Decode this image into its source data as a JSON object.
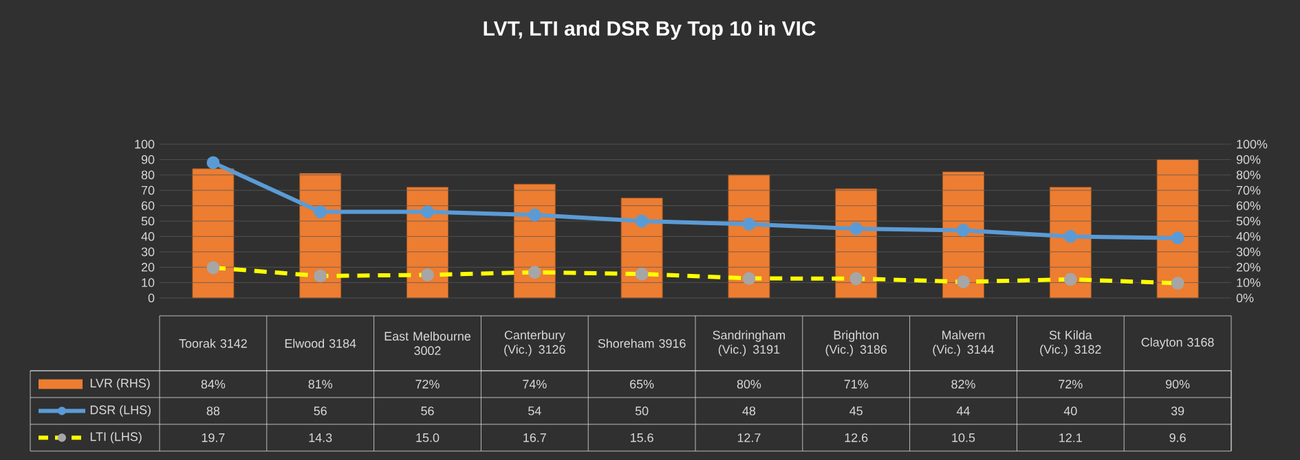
{
  "chart_data": {
    "type": "bar",
    "title": "LVT, LTI and DSR By Top 10 in VIC",
    "categories": [
      "Toorak 3142",
      "Elwood 3184",
      "East Melbourne 3002",
      "Canterbury (Vic.) 3126",
      "Shoreham 3916",
      "Sandringham (Vic.) 3191",
      "Brighton (Vic.) 3186",
      "Malvern (Vic.) 3144",
      "St Kilda (Vic.) 3182",
      "Clayton 3168"
    ],
    "series": [
      {
        "name": "LVR (RHS)",
        "axis": "y2",
        "color": "#ed7d31",
        "values": [
          84,
          81,
          72,
          74,
          65,
          80,
          71,
          82,
          72,
          90
        ],
        "value_labels": [
          "84%",
          "81%",
          "72%",
          "74%",
          "65%",
          "80%",
          "71%",
          "82%",
          "72%",
          "90%"
        ]
      },
      {
        "name": "DSR (LHS)",
        "type": "line",
        "color": "#5b9bd5",
        "marker": "circle",
        "line_style": "solid",
        "values": [
          88,
          56,
          56,
          54,
          50,
          48,
          45,
          44,
          40,
          39
        ],
        "value_labels": [
          "88",
          "56",
          "56",
          "54",
          "50",
          "48",
          "45",
          "44",
          "40",
          "39"
        ]
      },
      {
        "name": "LTI (LHS)",
        "type": "line",
        "color": "#ffff00",
        "marker": "circle",
        "line_style": "dashed",
        "values": [
          19.7,
          14.3,
          15.0,
          16.7,
          15.6,
          12.7,
          12.6,
          10.5,
          12.1,
          9.6
        ],
        "value_labels": [
          "19.7",
          "14.3",
          "15.0",
          "16.7",
          "15.6",
          "12.7",
          "12.6",
          "10.5",
          "12.1",
          "9.6"
        ]
      }
    ],
    "ylim": [
      0,
      100
    ],
    "yticks": [
      0,
      10,
      20,
      30,
      40,
      50,
      60,
      70,
      80,
      90,
      100
    ],
    "y2lim": [
      0,
      100
    ],
    "y2ticks": [
      {
        "value": 0,
        "label": "0%"
      },
      {
        "value": 10,
        "label": "10%"
      },
      {
        "value": 20,
        "label": "20%"
      },
      {
        "value": 30,
        "label": "30%"
      },
      {
        "value": 40,
        "label": "40%"
      },
      {
        "value": 50,
        "label": "50%"
      },
      {
        "value": 60,
        "label": "60%"
      },
      {
        "value": 70,
        "label": "70%"
      },
      {
        "value": 80,
        "label": "80%"
      },
      {
        "value": 90,
        "label": "90%"
      },
      {
        "value": 100,
        "label": "100%"
      }
    ],
    "grid": "y",
    "legend": "bottom"
  }
}
